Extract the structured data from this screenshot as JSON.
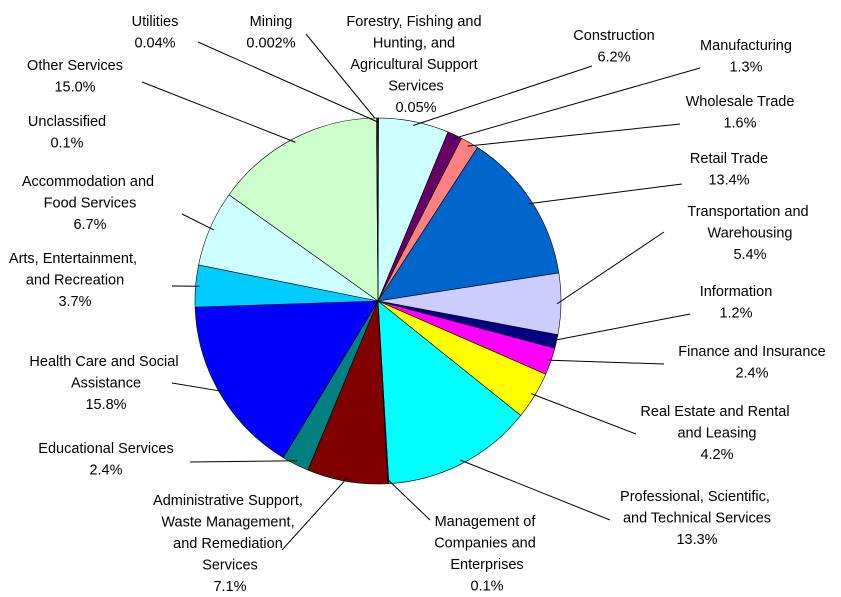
{
  "chart_data": {
    "type": "pie",
    "categories": [
      "Mining",
      "Forestry, Fishing and Hunting, and Agricultural Support Services",
      "Construction",
      "Manufacturing",
      "Wholesale Trade",
      "Retail Trade",
      "Transportation and Warehousing",
      "Information",
      "Finance and Insurance",
      "Real Estate and Rental and Leasing",
      "Professional, Scientific, and Technical Services",
      "Management of Companies and Enterprises",
      "Administrative Support, Waste Management, and Remediation Services",
      "Educational Services",
      "Health Care and Social Assistance",
      "Arts, Entertainment, and Recreation",
      "Accommodation and Food Services",
      "Other Services",
      "Unclassified",
      "Utilities"
    ],
    "values": [
      0.002,
      0.05,
      6.2,
      1.3,
      1.6,
      13.4,
      5.4,
      1.2,
      2.4,
      4.2,
      13.3,
      0.1,
      7.1,
      2.4,
      15.8,
      3.7,
      6.7,
      15.0,
      0.1,
      0.04
    ],
    "value_labels": [
      "0.002%",
      "0.05%",
      "6.2%",
      "1.3%",
      "1.6%",
      "13.4%",
      "5.4%",
      "1.2%",
      "2.4%",
      "4.2%",
      "13.3%",
      "0.1%",
      "7.1%",
      "2.4%",
      "15.8%",
      "3.7%",
      "6.7%",
      "15.0%",
      "0.1%",
      "0.04%"
    ],
    "colors": [
      "#333399",
      "#993366",
      "#ccffff",
      "#660066",
      "#ff8080",
      "#0066cc",
      "#ccccff",
      "#000080",
      "#ff00ff",
      "#ffff00",
      "#00ffff",
      "#800080",
      "#800000",
      "#008080",
      "#0000ff",
      "#00ccff",
      "#ccffff",
      "#ccffcc",
      "#ffcc99",
      "#000080"
    ]
  }
}
